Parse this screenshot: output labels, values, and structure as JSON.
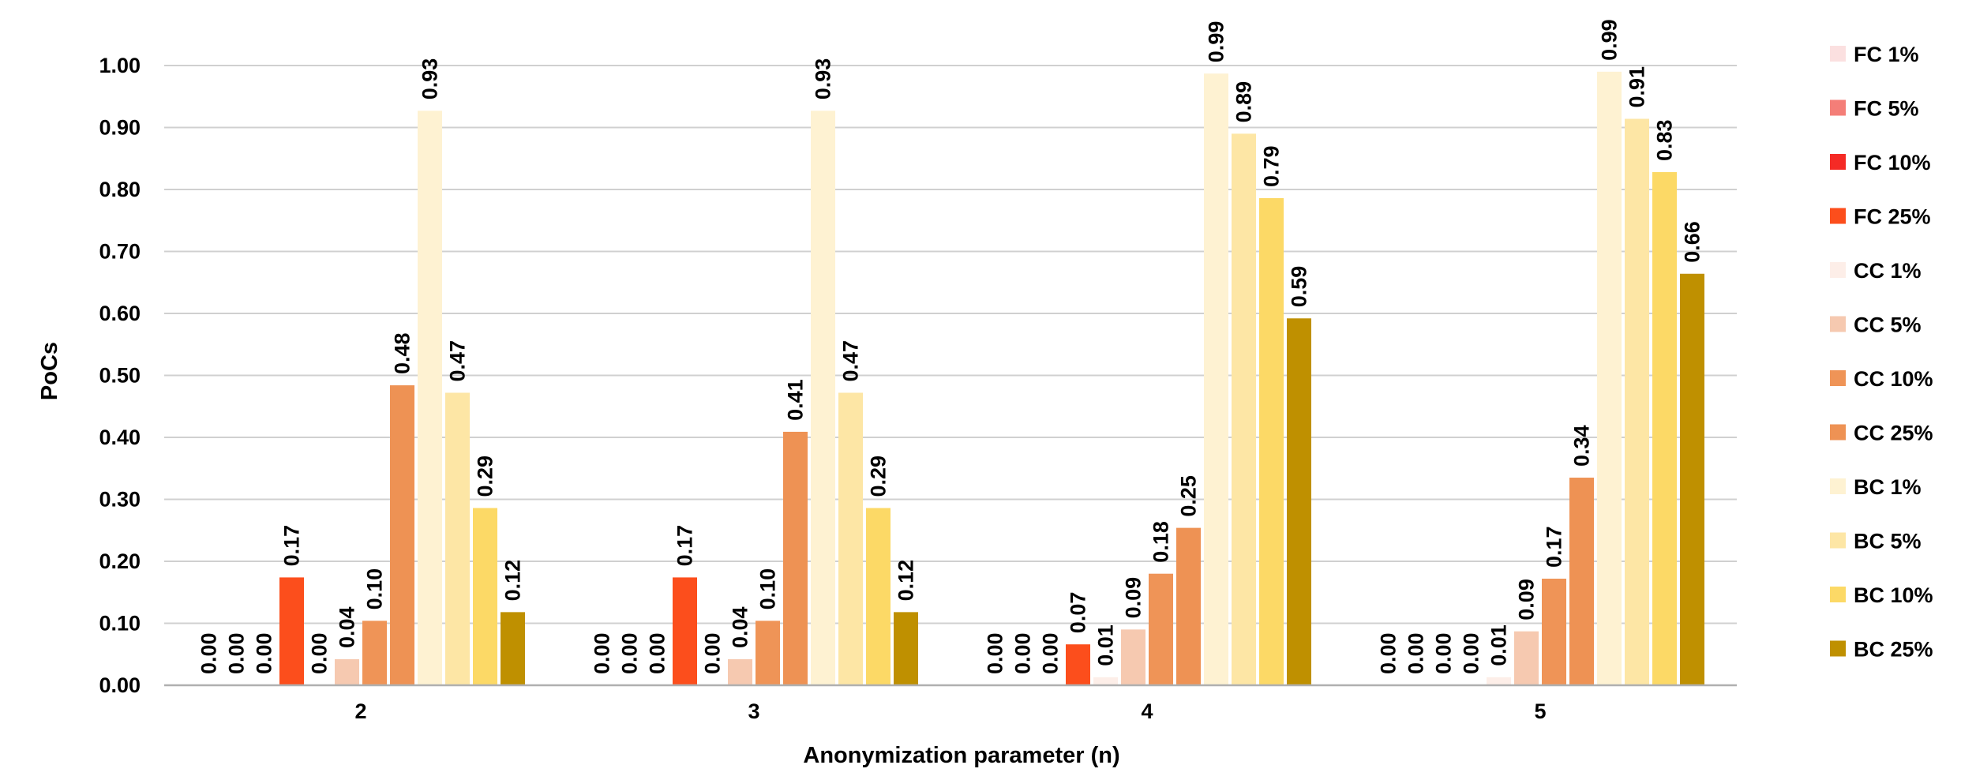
{
  "chart_data": {
    "type": "bar",
    "title": "",
    "xlabel": "Anonymization parameter (n)",
    "ylabel": "PoCs",
    "ylim": [
      0,
      1.0
    ],
    "y_ticks": [
      "0.00",
      "0.10",
      "0.20",
      "0.30",
      "0.40",
      "0.50",
      "0.60",
      "0.70",
      "0.80",
      "0.90",
      "1.00"
    ],
    "categories": [
      "2",
      "3",
      "4",
      "5"
    ],
    "grid": true,
    "legend_position": "right",
    "data_labels": true,
    "series": [
      {
        "name": "FC 1%",
        "color": "#fbe0e0",
        "values": [
          0.0,
          0.0,
          0.0,
          0.0
        ],
        "labels": [
          "0.00",
          "0.00",
          "0.00",
          "0.00"
        ]
      },
      {
        "name": "FC 5%",
        "color": "#f47e78",
        "values": [
          0.0,
          0.0,
          0.0,
          0.0
        ],
        "labels": [
          "0.00",
          "0.00",
          "0.00",
          "0.00"
        ]
      },
      {
        "name": "FC 10%",
        "color": "#f52a25",
        "values": [
          0.0,
          0.0,
          0.0,
          0.0
        ],
        "labels": [
          "0.00",
          "0.00",
          "0.00",
          "0.00"
        ]
      },
      {
        "name": "FC 25%",
        "color": "#fc4e1c",
        "values": [
          0.174,
          0.174,
          0.066,
          0.0
        ],
        "labels": [
          "0.17",
          "0.17",
          "0.07",
          "0.00"
        ]
      },
      {
        "name": "CC 1%",
        "color": "#fdeee8",
        "values": [
          0.0,
          0.0,
          0.013,
          0.013
        ],
        "labels": [
          "0.00",
          "0.00",
          "0.01",
          "0.01"
        ]
      },
      {
        "name": "CC 5%",
        "color": "#f6c9b0",
        "values": [
          0.042,
          0.042,
          0.09,
          0.087
        ],
        "labels": [
          "0.04",
          "0.04",
          "0.09",
          "0.09"
        ]
      },
      {
        "name": "CC 10%",
        "color": "#ef9457",
        "values": [
          0.104,
          0.104,
          0.18,
          0.172
        ],
        "labels": [
          "0.10",
          "0.10",
          "0.18",
          "0.17"
        ]
      },
      {
        "name": "CC 25%",
        "color": "#ee9254",
        "values": [
          0.484,
          0.409,
          0.254,
          0.335
        ],
        "labels": [
          "0.48",
          "0.41",
          "0.25",
          "0.34"
        ]
      },
      {
        "name": "BC 1%",
        "color": "#fef2d2",
        "values": [
          0.927,
          0.927,
          0.987,
          0.99
        ],
        "labels": [
          "0.93",
          "0.93",
          "0.99",
          "0.99"
        ]
      },
      {
        "name": "BC 5%",
        "color": "#fde6a5",
        "values": [
          0.472,
          0.472,
          0.89,
          0.914
        ],
        "labels": [
          "0.47",
          "0.47",
          "0.89",
          "0.91"
        ]
      },
      {
        "name": "BC 10%",
        "color": "#fcd966",
        "values": [
          0.286,
          0.286,
          0.786,
          0.828
        ],
        "labels": [
          "0.29",
          "0.29",
          "0.79",
          "0.83"
        ]
      },
      {
        "name": "BC 25%",
        "color": "#bf9000",
        "values": [
          0.118,
          0.118,
          0.592,
          0.664
        ],
        "labels": [
          "0.12",
          "0.12",
          "0.59",
          "0.66"
        ]
      }
    ]
  }
}
